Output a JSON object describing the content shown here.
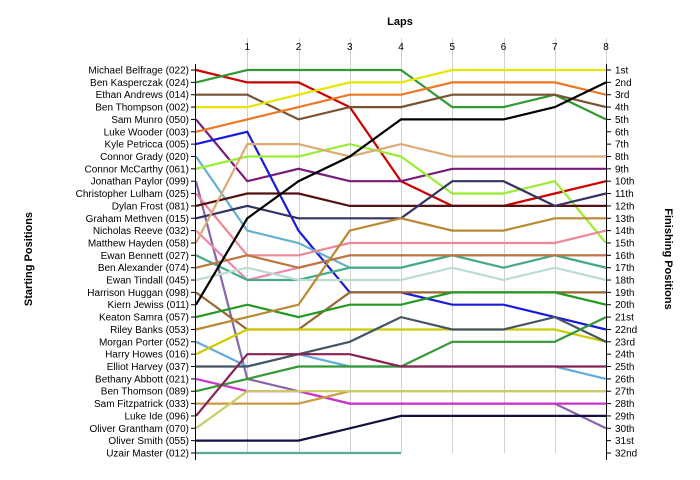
{
  "chart_data": {
    "type": "line",
    "title": "Laps",
    "xlabel": "Laps",
    "ylabel_left": "Starting Positions",
    "ylabel_right": "Finishing Positions",
    "x": [
      0,
      1,
      2,
      3,
      4,
      5,
      6,
      7,
      8
    ],
    "x_tick_labels": [
      "1",
      "2",
      "3",
      "4",
      "5",
      "6",
      "7",
      "8"
    ],
    "y_range": [
      1,
      32
    ],
    "y_inverted": true,
    "grid": "vertical",
    "start_labels": [
      "Michael Belfrage (022)",
      "Ben Kasperczak (024)",
      "Ethan Andrews (014)",
      "Ben Thompson (002)",
      "Sam Munro (050)",
      "Luke Wooder (003)",
      "Kyle Petricca (005)",
      "Connor Grady (020)",
      "Connor McCarthy (061)",
      "Jonathan Paylor (099)",
      "Christopher Lulham (025)",
      "Dylan Frost (081)",
      "Graham Methven (015)",
      "Nicholas Reeve (032)",
      "Matthew Hayden (058)",
      "Ewan Bennett (027)",
      "Ben Alexander (074)",
      "Ewan Tindall (045)",
      "Harrison Huggan (098)",
      "Kiern Jewiss (011)",
      "Keaton Samra (057)",
      "Riley Banks (053)",
      "Morgan Porter (052)",
      "Harry Howes (016)",
      "Elliot Harvey (037)",
      "Bethany Abbott (021)",
      "Ben Thomson (089)",
      "Sam Fitzpatrick (033)",
      "Luke Ide (096)",
      "Oliver Grantham (070)",
      "Oliver Smith (055)",
      "Uzair Master (012)"
    ],
    "finish_labels": [
      "1st",
      "2nd",
      "3rd",
      "4th",
      "5th",
      "6th",
      "7th",
      "8th",
      "9th",
      "10th",
      "11th",
      "12th",
      "13th",
      "14th",
      "15th",
      "16th",
      "17th",
      "18th",
      "19th",
      "20th",
      "21st",
      "22nd",
      "23rd",
      "24th",
      "25th",
      "26th",
      "27th",
      "28th",
      "29th",
      "30th",
      "31st",
      "32nd"
    ],
    "series": [
      {
        "color": "#cc0000",
        "positions": [
          1,
          2,
          2,
          4,
          10,
          12,
          12,
          11,
          10
        ]
      },
      {
        "color": "#339933",
        "positions": [
          2,
          1,
          1,
          1,
          1,
          4,
          4,
          3,
          5
        ]
      },
      {
        "color": "#7a5230",
        "positions": [
          3,
          3,
          5,
          4,
          4,
          3,
          3,
          3,
          4
        ]
      },
      {
        "color": "#e6e600",
        "positions": [
          4,
          4,
          3,
          2,
          2,
          1,
          1,
          1,
          1
        ]
      },
      {
        "color": "#7a1a7a",
        "positions": [
          5,
          10,
          9,
          10,
          10,
          9,
          9,
          9,
          9
        ]
      },
      {
        "color": "#ee7722",
        "positions": [
          6,
          5,
          4,
          3,
          3,
          2,
          2,
          2,
          3
        ]
      },
      {
        "color": "#1a1adc",
        "positions": [
          7,
          6,
          14,
          19,
          19,
          20,
          20,
          21,
          22
        ]
      },
      {
        "color": "#66b2cc",
        "positions": [
          8,
          14,
          15,
          17,
          17,
          16,
          16,
          16,
          17
        ]
      },
      {
        "color": "#99ee33",
        "positions": [
          9,
          8,
          8,
          7,
          8,
          11,
          11,
          10,
          15
        ]
      },
      {
        "color": "#8866aa",
        "positions": [
          10,
          26,
          27,
          28,
          28,
          28,
          28,
          28,
          30
        ]
      },
      {
        "color": "#ee8899",
        "positions": [
          11,
          16,
          16,
          15,
          15,
          15,
          15,
          15,
          14
        ]
      },
      {
        "color": "#551111",
        "positions": [
          12,
          11,
          11,
          12,
          12,
          12,
          12,
          12,
          12
        ]
      },
      {
        "color": "#333366",
        "positions": [
          13,
          12,
          13,
          13,
          13,
          10,
          10,
          12,
          11
        ]
      },
      {
        "color": "#ee88aa",
        "positions": [
          14,
          18,
          17,
          16,
          16,
          16,
          16,
          16,
          16
        ]
      },
      {
        "color": "#ddaa77",
        "positions": [
          15,
          7,
          7,
          8,
          7,
          8,
          8,
          8,
          8
        ]
      },
      {
        "color": "#44aa88",
        "positions": [
          16,
          18,
          18,
          17,
          17,
          16,
          17,
          16,
          17
        ]
      },
      {
        "color": "#bb7744",
        "positions": [
          17,
          16,
          17,
          16,
          16,
          16,
          16,
          16,
          16
        ]
      },
      {
        "color": "#bbddcc",
        "positions": [
          18,
          17,
          18,
          18,
          18,
          17,
          18,
          17,
          18
        ]
      },
      {
        "color": "#996633",
        "positions": [
          19,
          22,
          22,
          19,
          19,
          19,
          19,
          19,
          19
        ]
      },
      {
        "color": "#000000",
        "positions": [
          20,
          13,
          10,
          8,
          5,
          5,
          5,
          4,
          2
        ]
      },
      {
        "color": "#229922",
        "positions": [
          21,
          20,
          21,
          20,
          20,
          19,
          19,
          19,
          20
        ]
      },
      {
        "color": "#bb8833",
        "positions": [
          22,
          21,
          20,
          14,
          13,
          14,
          14,
          13,
          13
        ]
      },
      {
        "color": "#66aadd",
        "positions": [
          23,
          25,
          24,
          25,
          25,
          25,
          25,
          25,
          26
        ]
      },
      {
        "color": "#cccc00",
        "positions": [
          24,
          22,
          22,
          22,
          22,
          22,
          22,
          22,
          23
        ]
      },
      {
        "color": "#445566",
        "positions": [
          25,
          25,
          24,
          23,
          21,
          22,
          22,
          21,
          23
        ]
      },
      {
        "color": "#cc33cc",
        "positions": [
          26,
          27,
          27,
          28,
          28,
          28,
          28,
          28,
          28
        ]
      },
      {
        "color": "#339933",
        "positions": [
          27,
          26,
          25,
          25,
          25,
          23,
          23,
          23,
          21
        ]
      },
      {
        "color": "#cc9944",
        "positions": [
          28,
          28,
          28,
          27,
          27,
          27,
          27,
          27,
          27
        ]
      },
      {
        "color": "#882255",
        "positions": [
          29,
          24,
          24,
          24,
          25,
          25,
          25,
          25,
          25
        ]
      },
      {
        "color": "#cccc66",
        "positions": [
          30,
          27,
          27,
          27,
          27,
          27,
          27,
          27,
          27
        ]
      },
      {
        "color": "#111144",
        "positions": [
          31,
          31,
          31,
          30,
          29,
          29,
          29,
          29,
          29
        ]
      },
      {
        "color": "#55aa99",
        "positions": [
          32,
          32,
          32,
          32,
          32
        ]
      }
    ]
  }
}
